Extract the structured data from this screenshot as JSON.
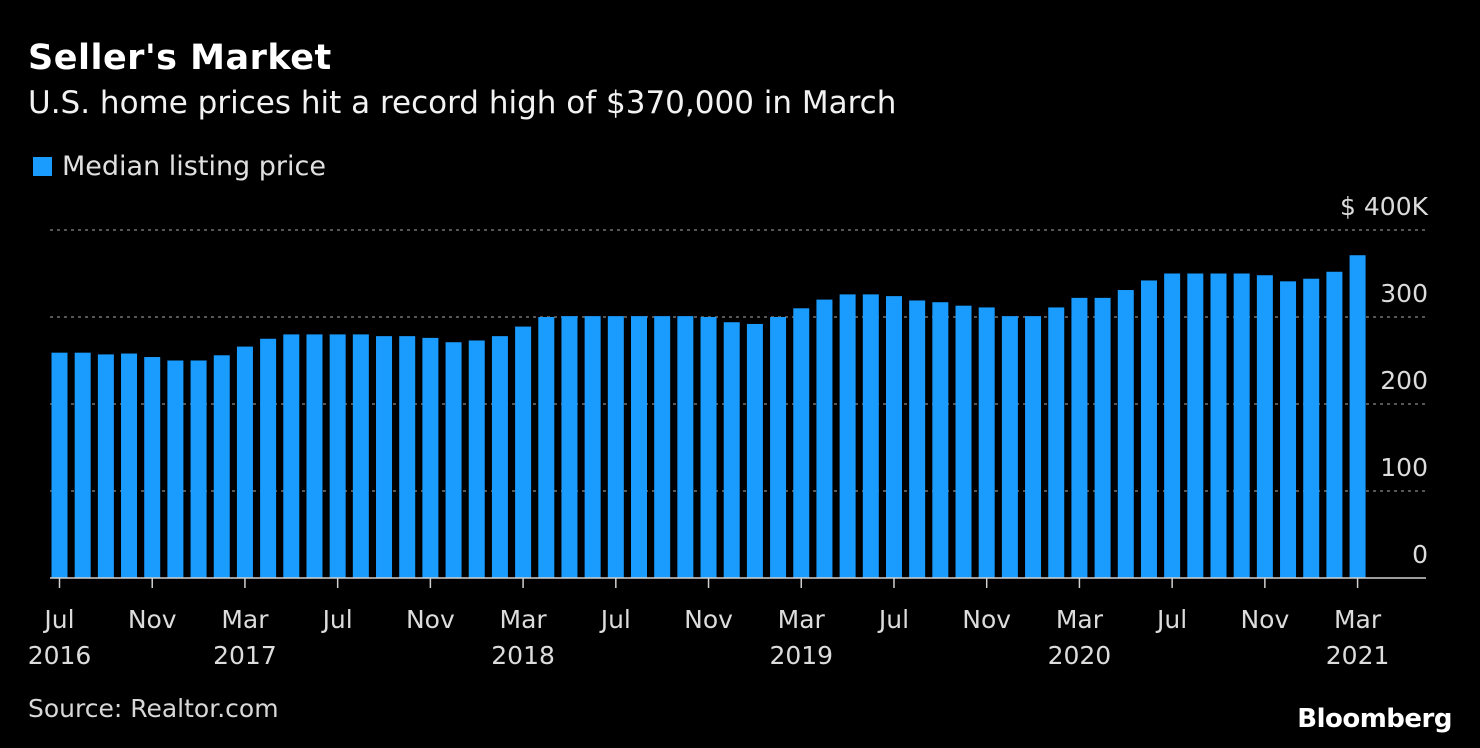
{
  "chart_data": {
    "type": "bar",
    "title": "Seller's Market",
    "subtitle": "U.S. home prices hit a record high of $370,000 in March",
    "series": [
      {
        "name": "Median listing price",
        "color": "#1a9cff",
        "values": [
          259,
          259,
          257,
          258,
          254,
          250,
          250,
          256,
          266,
          275,
          280,
          280,
          280,
          280,
          278,
          278,
          276,
          271,
          273,
          278,
          289,
          300,
          301,
          301,
          301,
          301,
          301,
          301,
          300,
          294,
          292,
          300,
          310,
          320,
          326,
          326,
          324,
          319,
          317,
          313,
          311,
          301,
          301,
          311,
          322,
          322,
          331,
          342,
          350,
          350,
          350,
          350,
          348,
          341,
          344,
          352,
          371
        ]
      }
    ],
    "ylim": [
      0,
      400
    ],
    "yticks": [
      {
        "value": 0,
        "label": "0"
      },
      {
        "value": 100,
        "label": "100"
      },
      {
        "value": 200,
        "label": "200"
      },
      {
        "value": 300,
        "label": "300"
      },
      {
        "value": 400,
        "label": "$ 400K"
      }
    ],
    "xticks": [
      {
        "index": 0,
        "month": "Jul",
        "year": "2016"
      },
      {
        "index": 4,
        "month": "Nov",
        "year": ""
      },
      {
        "index": 8,
        "month": "Mar",
        "year": "2017"
      },
      {
        "index": 12,
        "month": "Jul",
        "year": ""
      },
      {
        "index": 16,
        "month": "Nov",
        "year": ""
      },
      {
        "index": 20,
        "month": "Mar",
        "year": "2018"
      },
      {
        "index": 24,
        "month": "Jul",
        "year": ""
      },
      {
        "index": 28,
        "month": "Nov",
        "year": ""
      },
      {
        "index": 32,
        "month": "Mar",
        "year": "2019"
      },
      {
        "index": 36,
        "month": "Jul",
        "year": ""
      },
      {
        "index": 40,
        "month": "Nov",
        "year": ""
      },
      {
        "index": 44,
        "month": "Mar",
        "year": "2020"
      },
      {
        "index": 48,
        "month": "Jul",
        "year": ""
      },
      {
        "index": 52,
        "month": "Nov",
        "year": ""
      },
      {
        "index": 56,
        "month": "Mar",
        "year": "2021"
      }
    ],
    "grid": true,
    "legend_position": "top-left",
    "source": "Source: Realtor.com",
    "brand": "Bloomberg"
  }
}
